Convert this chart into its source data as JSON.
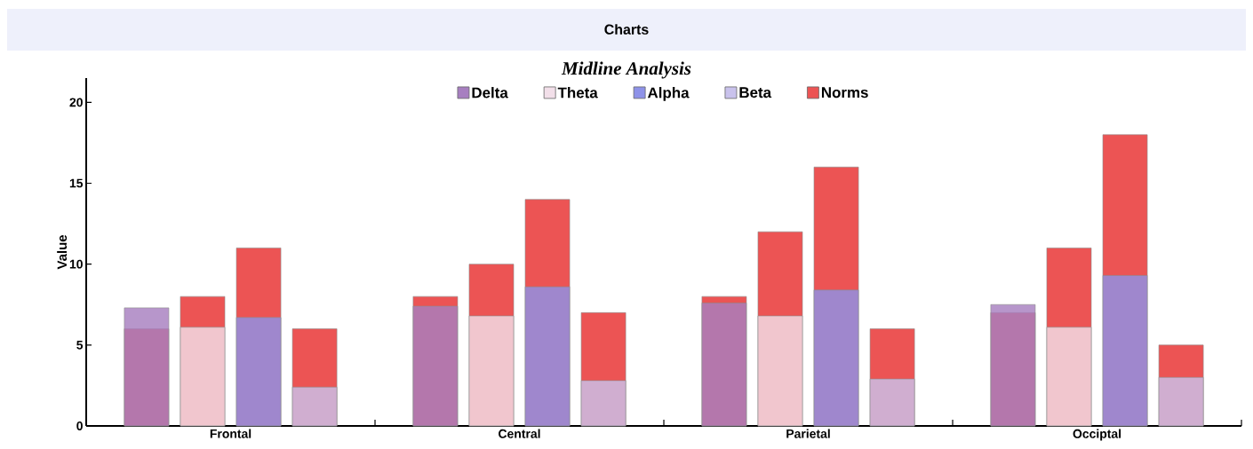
{
  "chart_data": {
    "type": "bar",
    "title": "Midline Analysis",
    "ylabel": "Value",
    "annotations": [
      "Charts"
    ],
    "categories": [
      "Frontal",
      "Central",
      "Parietal",
      "Occiptal"
    ],
    "series": [
      {
        "name": "Delta",
        "color": "#a77fc0",
        "values": [
          7.3,
          7.4,
          7.6,
          7.5
        ]
      },
      {
        "name": "Theta",
        "color": "#f2dfe9",
        "values": [
          6.1,
          6.8,
          6.8,
          6.1
        ]
      },
      {
        "name": "Alpha",
        "color": "#8e92e8",
        "values": [
          6.7,
          8.6,
          8.4,
          9.3
        ]
      },
      {
        "name": "Beta",
        "color": "#c9c2ec",
        "values": [
          2.4,
          2.8,
          2.9,
          3.0
        ]
      },
      {
        "name": "Norms",
        "color": "#ec5454",
        "x": [
          "Frontal",
          "Frontal",
          "Frontal",
          "Frontal",
          "Central",
          "Central",
          "Central",
          "Central",
          "Parietal",
          "Parietal",
          "Parietal",
          "Parietal",
          "Occiptal",
          "Occiptal",
          "Occiptal",
          "Occiptal"
        ],
        "values": [
          6,
          8,
          11,
          6,
          8,
          10,
          14,
          7,
          8,
          12,
          16,
          6,
          7,
          11,
          18,
          5
        ]
      }
    ],
    "ylim": [
      0,
      21.5
    ],
    "yticks": [
      0,
      5,
      10,
      15,
      20
    ],
    "grid": false,
    "legend": "top"
  }
}
